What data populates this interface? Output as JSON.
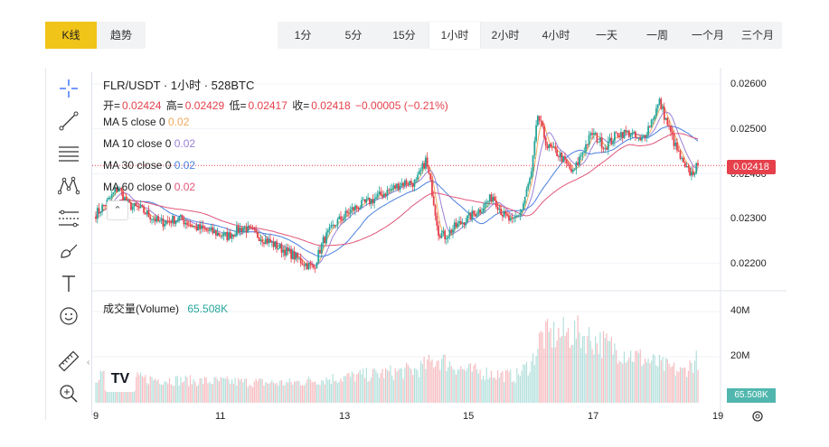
{
  "view_tabs": [
    {
      "label": "K线",
      "active": true
    },
    {
      "label": "趋势",
      "active": false
    }
  ],
  "intervals": [
    {
      "label": "1分",
      "active": false
    },
    {
      "label": "5分",
      "active": false
    },
    {
      "label": "15分",
      "active": false
    },
    {
      "label": "1小时",
      "active": true
    },
    {
      "label": "2小时",
      "active": false
    },
    {
      "label": "4小时",
      "active": false
    },
    {
      "label": "一天",
      "active": false
    },
    {
      "label": "一周",
      "active": false
    },
    {
      "label": "一个月",
      "active": false
    },
    {
      "label": "三个月",
      "active": false
    }
  ],
  "legend": {
    "title": "FLR/USDT · 1小时 · 528BTC",
    "open_label": "开=",
    "open": "0.02424",
    "high_label": "高=",
    "high": "0.02429",
    "low_label": "低=",
    "low": "0.02417",
    "close_label": "收=",
    "close": "0.02418",
    "change": "−0.00005 (−0.21%)",
    "ma": [
      {
        "label": "MA 5 close 0",
        "value": "0.02",
        "color": "#f2a85c"
      },
      {
        "label": "MA 10 close 0",
        "value": "0.02",
        "color": "#9b7fd6"
      },
      {
        "label": "MA 30 close 0",
        "value": "0.02",
        "color": "#4a7fe0"
      },
      {
        "label": "MA 60 close 0",
        "value": "0.02",
        "color": "#e0567a"
      }
    ],
    "volume_label": "成交量(Volume)",
    "volume_value": "65.508K",
    "volume_color": "#26a69a"
  },
  "price_axis": [
    "0.02600",
    "0.02500",
    "0.02400",
    "0.02300",
    "0.02200"
  ],
  "volume_axis": [
    "40M",
    "20M"
  ],
  "time_axis": [
    "9",
    "11",
    "13",
    "15",
    "17",
    "19"
  ],
  "current_price": "0.02418",
  "current_volume": "65.508K",
  "logo_text": "TV",
  "colors": {
    "up": "#26a69a",
    "down": "#e5404b",
    "accent": "#f0c419"
  },
  "tools": [
    "crosshair-icon",
    "trendline-icon",
    "fib-icon",
    "pattern-icon",
    "measure-lines-icon",
    "brush-icon",
    "text-icon",
    "emoji-icon",
    "ruler-icon",
    "zoom-icon"
  ],
  "chart_data": {
    "type": "candlestick",
    "title": "FLR/USDT 1小时",
    "ylim": [
      0.0218,
      0.0261
    ],
    "x_ticks": [
      "9",
      "11",
      "13",
      "15",
      "17",
      "19"
    ],
    "anchors_close": [
      [
        0,
        0.0231
      ],
      [
        8,
        0.0234
      ],
      [
        14,
        0.0237
      ],
      [
        20,
        0.0233
      ],
      [
        28,
        0.0232
      ],
      [
        40,
        0.0229
      ],
      [
        52,
        0.023
      ],
      [
        62,
        0.0228
      ],
      [
        72,
        0.0227
      ],
      [
        82,
        0.0226
      ],
      [
        92,
        0.0228
      ],
      [
        102,
        0.0226
      ],
      [
        112,
        0.0224
      ],
      [
        122,
        0.0222
      ],
      [
        130,
        0.022
      ],
      [
        136,
        0.0219
      ],
      [
        142,
        0.0225
      ],
      [
        150,
        0.0229
      ],
      [
        160,
        0.0232
      ],
      [
        172,
        0.0234
      ],
      [
        182,
        0.0236
      ],
      [
        192,
        0.0238
      ],
      [
        200,
        0.0238
      ],
      [
        206,
        0.0243
      ],
      [
        210,
        0.0236
      ],
      [
        214,
        0.0227
      ],
      [
        218,
        0.0226
      ],
      [
        224,
        0.0228
      ],
      [
        232,
        0.023
      ],
      [
        240,
        0.0232
      ],
      [
        248,
        0.0235
      ],
      [
        254,
        0.0231
      ],
      [
        260,
        0.0229
      ],
      [
        266,
        0.0232
      ],
      [
        272,
        0.024
      ],
      [
        276,
        0.0253
      ],
      [
        282,
        0.0246
      ],
      [
        290,
        0.0244
      ],
      [
        298,
        0.024
      ],
      [
        304,
        0.0245
      ],
      [
        310,
        0.0249
      ],
      [
        318,
        0.0246
      ],
      [
        326,
        0.0249
      ],
      [
        334,
        0.0249
      ],
      [
        340,
        0.0247
      ],
      [
        346,
        0.0251
      ],
      [
        352,
        0.0256
      ],
      [
        356,
        0.0252
      ],
      [
        362,
        0.0246
      ],
      [
        368,
        0.0241
      ],
      [
        372,
        0.024
      ],
      [
        376,
        0.02418
      ]
    ],
    "volume_profile": [
      [
        0,
        12
      ],
      [
        60,
        10
      ],
      [
        120,
        9
      ],
      [
        160,
        12
      ],
      [
        200,
        15
      ],
      [
        214,
        20
      ],
      [
        230,
        15
      ],
      [
        262,
        12
      ],
      [
        272,
        18
      ],
      [
        278,
        30
      ],
      [
        300,
        32
      ],
      [
        320,
        26
      ],
      [
        334,
        22
      ],
      [
        350,
        18
      ],
      [
        366,
        14
      ],
      [
        376,
        20
      ]
    ],
    "ma_periods": [
      5,
      10,
      30,
      60
    ],
    "candle_count": 377
  }
}
